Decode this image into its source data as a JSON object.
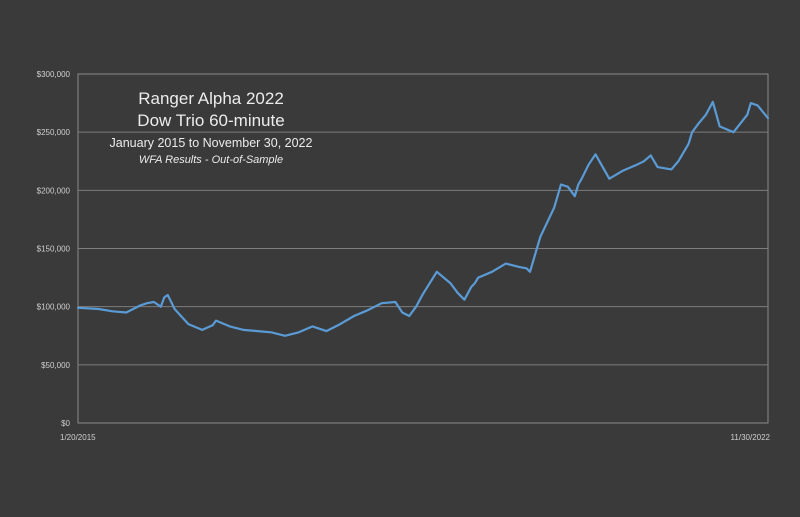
{
  "chart_data": {
    "type": "line",
    "title": "Ranger Alpha 2022",
    "subtitle_lines": [
      "Dow Trio 60-minute",
      "January 2015 to November 30, 2022",
      "WFA Results - Out-of-Sample"
    ],
    "xlabel": "",
    "ylabel": "",
    "ylim": [
      0,
      300000
    ],
    "y_ticks": [
      "$0",
      "$50,000",
      "$100,000",
      "$150,000",
      "$200,000",
      "$250,000",
      "$300,000"
    ],
    "x_tick_labels": [
      "1/20/2015",
      "11/30/2022"
    ],
    "grid": true,
    "legend": "none",
    "line_color": "#5b9bd5",
    "series": [
      {
        "x": [
          0.0,
          0.03,
          0.05,
          0.07,
          0.09,
          0.1,
          0.11,
          0.12,
          0.125,
          0.13,
          0.135,
          0.14,
          0.16,
          0.18,
          0.195,
          0.2,
          0.22,
          0.24,
          0.26,
          0.28,
          0.3,
          0.32,
          0.34,
          0.36,
          0.38,
          0.4,
          0.42,
          0.44,
          0.46,
          0.47,
          0.48,
          0.49,
          0.5,
          0.52,
          0.54,
          0.55,
          0.56,
          0.57,
          0.575,
          0.58,
          0.6,
          0.62,
          0.64,
          0.65,
          0.655,
          0.67,
          0.69,
          0.7,
          0.71,
          0.72,
          0.725,
          0.73,
          0.74,
          0.75,
          0.77,
          0.79,
          0.81,
          0.82,
          0.83,
          0.84,
          0.86,
          0.87,
          0.885,
          0.89,
          0.9,
          0.91,
          0.92,
          0.93,
          0.95,
          0.97,
          0.975,
          0.985,
          1.0
        ],
        "y": [
          99000,
          98000,
          96000,
          95000,
          101000,
          103000,
          104000,
          100000,
          108000,
          110000,
          104000,
          98000,
          85000,
          80000,
          84000,
          88000,
          83000,
          80000,
          79000,
          78000,
          75000,
          78000,
          83000,
          79000,
          85000,
          92000,
          97000,
          103000,
          104000,
          95000,
          92000,
          100000,
          111000,
          130000,
          120000,
          112000,
          106000,
          117000,
          120000,
          125000,
          130000,
          137000,
          134000,
          133000,
          130000,
          160000,
          185000,
          205000,
          203000,
          195000,
          205000,
          210000,
          222000,
          231000,
          210000,
          217000,
          222000,
          225000,
          230000,
          220000,
          218000,
          225000,
          240000,
          250000,
          258000,
          265000,
          276000,
          255000,
          250000,
          265000,
          275000,
          273000,
          262000
        ]
      }
    ]
  }
}
